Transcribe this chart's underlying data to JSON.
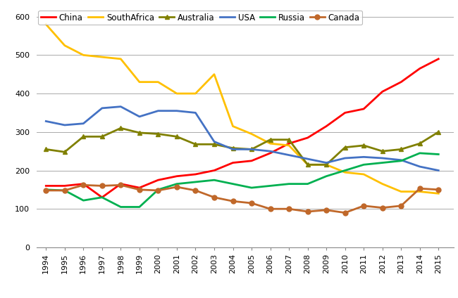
{
  "years": [
    1994,
    1995,
    1996,
    1997,
    1998,
    1999,
    2000,
    2001,
    2002,
    2003,
    2004,
    2005,
    2006,
    2007,
    2008,
    2009,
    2010,
    2011,
    2012,
    2013,
    2014,
    2015
  ],
  "China": [
    160,
    160,
    165,
    130,
    165,
    155,
    175,
    185,
    190,
    200,
    220,
    225,
    245,
    270,
    285,
    315,
    350,
    360,
    405,
    430,
    465,
    490
  ],
  "SouthAfrica": [
    580,
    525,
    500,
    495,
    490,
    430,
    430,
    400,
    400,
    450,
    315,
    295,
    270,
    265,
    215,
    215,
    195,
    190,
    165,
    145,
    145,
    140
  ],
  "Australia": [
    255,
    248,
    288,
    288,
    310,
    298,
    295,
    288,
    268,
    268,
    258,
    255,
    280,
    280,
    215,
    215,
    260,
    265,
    250,
    255,
    270,
    300
  ],
  "USA": [
    328,
    318,
    322,
    362,
    366,
    340,
    355,
    355,
    350,
    275,
    255,
    255,
    250,
    240,
    230,
    220,
    232,
    235,
    232,
    227,
    210,
    200
  ],
  "Russia": [
    150,
    148,
    122,
    130,
    105,
    105,
    150,
    165,
    170,
    175,
    165,
    155,
    160,
    165,
    165,
    185,
    200,
    215,
    220,
    225,
    245,
    242
  ],
  "Canada": [
    148,
    148,
    162,
    160,
    162,
    150,
    148,
    157,
    148,
    130,
    120,
    115,
    100,
    100,
    93,
    97,
    90,
    108,
    103,
    108,
    153,
    150
  ],
  "colors": {
    "China": "#FF0000",
    "SouthAfrica": "#FFC000",
    "Australia": "#808000",
    "USA": "#4472C4",
    "Russia": "#00B050",
    "Canada": "#C0682A"
  },
  "markers": {
    "China": "none",
    "SouthAfrica": "none",
    "Australia": "^",
    "USA": "none",
    "Russia": "none",
    "Canada": "o"
  },
  "ylim": [
    0,
    620
  ],
  "yticks": [
    0,
    100,
    200,
    300,
    400,
    500,
    600
  ],
  "background_color": "#FFFFFF",
  "grid_color": "#AAAAAA",
  "linewidth": 2.0
}
